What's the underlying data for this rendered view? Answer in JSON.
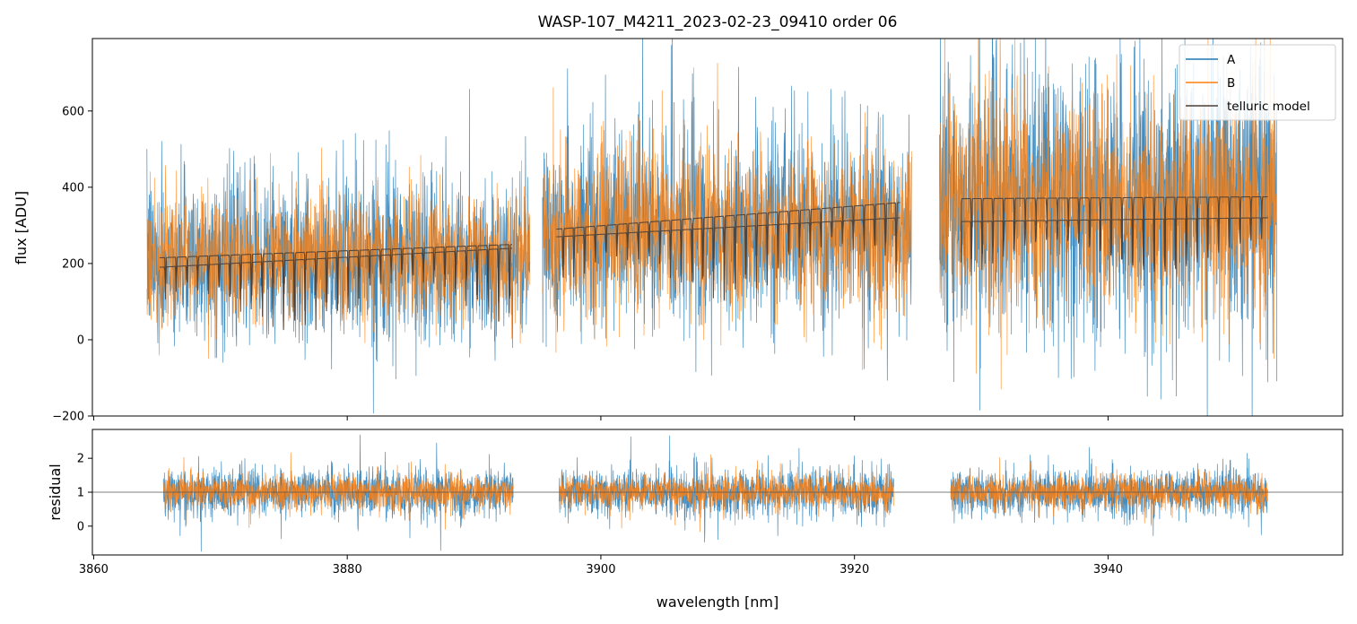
{
  "chart_data": [
    {
      "panel": "top",
      "type": "line",
      "title": "WASP-107_M4211_2023-02-23_09410  order 06",
      "xlabel": "",
      "ylabel": "flux [ADU]",
      "xlim": [
        3859.9,
        3958.5
      ],
      "ylim": [
        -200,
        790
      ],
      "yticks": [
        -200,
        0,
        200,
        400,
        600
      ],
      "ytick_labels": [
        "−200",
        "0",
        "200",
        "400",
        "600"
      ],
      "xticks": [
        3860,
        3880,
        3900,
        3920,
        3940
      ],
      "grid": false,
      "legend_position": "top-right",
      "segments": [
        {
          "start": 3864.2,
          "end": 3894.4
        },
        {
          "start": 3895.4,
          "end": 3924.5
        },
        {
          "start": 3926.7,
          "end": 3953.3
        }
      ],
      "series": [
        {
          "name": "A",
          "color": "#1f77b4",
          "kind": "noisy",
          "level_by_segment": [
            210,
            290,
            360
          ],
          "spread_by_segment": [
            190,
            230,
            330
          ]
        },
        {
          "name": "B",
          "color": "#ff7f0e",
          "kind": "noisy",
          "level_by_segment": [
            210,
            290,
            360
          ],
          "spread_by_segment": [
            150,
            190,
            260
          ]
        },
        {
          "name": "telluric model",
          "color": "#4a3f37",
          "kind": "model",
          "upper_by_segment": [
            [
              3865.2,
              215
            ],
            [
              3893.0,
              250
            ],
            [
              3896.5,
              290
            ],
            [
              3923.6,
              360
            ],
            [
              3928.4,
              370
            ],
            [
              3952.6,
              375
            ]
          ],
          "lower_by_segment": [
            [
              3865.2,
              190
            ],
            [
              3893.0,
              240
            ],
            [
              3896.5,
              270
            ],
            [
              3923.6,
              320
            ],
            [
              3928.4,
              310
            ],
            [
              3952.6,
              320
            ]
          ],
          "line_depth_min": 70,
          "line_depth_max": 300
        }
      ]
    },
    {
      "panel": "bottom",
      "type": "line",
      "xlabel": "wavelength [nm]",
      "ylabel": "residual",
      "xlim": [
        3859.9,
        3958.5
      ],
      "ylim": [
        -0.85,
        2.85
      ],
      "yticks": [
        0,
        1,
        2
      ],
      "ytick_labels": [
        "0",
        "1",
        "2"
      ],
      "xticks": [
        3860,
        3880,
        3900,
        3920,
        3940
      ],
      "xtick_labels": [
        "3860",
        "3880",
        "3900",
        "3920",
        "3940"
      ],
      "reference_line": 1,
      "segments": [
        {
          "start": 3865.5,
          "end": 3893.1
        },
        {
          "start": 3896.7,
          "end": 3923.1
        },
        {
          "start": 3927.6,
          "end": 3952.6
        }
      ],
      "series": [
        {
          "name": "A",
          "color": "#1f77b4",
          "center": 1,
          "spread": 0.75
        },
        {
          "name": "B",
          "color": "#ff7f0e",
          "center": 1,
          "spread": 0.55
        }
      ]
    }
  ]
}
